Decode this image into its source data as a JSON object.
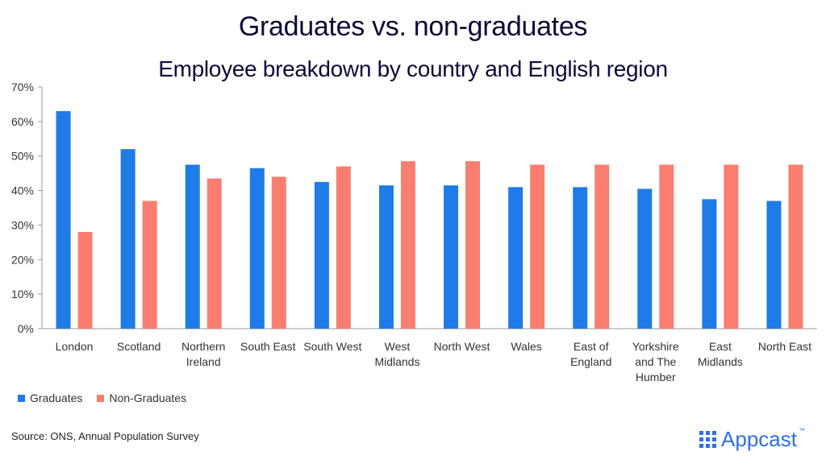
{
  "header": {
    "title": "Graduates vs. non-graduates",
    "subtitle": "Employee breakdown by country and English region"
  },
  "footer": {
    "source": "Source: ONS, Annual Population Survey",
    "logo_text": "Appcast",
    "logo_tm": "™"
  },
  "colors": {
    "graduates": "#1e7be8",
    "non_graduates": "#fa7e6f"
  },
  "chart_data": {
    "type": "bar",
    "categories": [
      "London",
      "Scotland",
      "Northern Ireland",
      "South East",
      "South West",
      "West Midlands",
      "North West",
      "Wales",
      "East of England",
      "Yorkshire and The Humber",
      "East Midlands",
      "North East"
    ],
    "category_label_lines": [
      [
        "London"
      ],
      [
        "Scotland"
      ],
      [
        "Northern",
        "Ireland"
      ],
      [
        "South East"
      ],
      [
        "South West"
      ],
      [
        "West",
        "Midlands"
      ],
      [
        "North West"
      ],
      [
        "Wales"
      ],
      [
        "East of",
        "England"
      ],
      [
        "Yorkshire",
        "and The",
        "Humber"
      ],
      [
        "East",
        "Midlands"
      ],
      [
        "North East"
      ]
    ],
    "series": [
      {
        "name": "Graduates",
        "values": [
          0.63,
          0.52,
          0.475,
          0.465,
          0.425,
          0.415,
          0.415,
          0.41,
          0.41,
          0.405,
          0.375,
          0.37
        ]
      },
      {
        "name": "Non-Graduates",
        "values": [
          0.28,
          0.37,
          0.435,
          0.44,
          0.47,
          0.485,
          0.485,
          0.475,
          0.475,
          0.475,
          0.475,
          0.475
        ]
      }
    ],
    "ylim": [
      0,
      0.7
    ],
    "yticks": [
      0,
      0.1,
      0.2,
      0.3,
      0.4,
      0.5,
      0.6,
      0.7
    ],
    "ytick_labels": [
      "0%",
      "10%",
      "20%",
      "30%",
      "40%",
      "50%",
      "60%",
      "70%"
    ],
    "legend_position": "bottom-left",
    "grid": false
  }
}
